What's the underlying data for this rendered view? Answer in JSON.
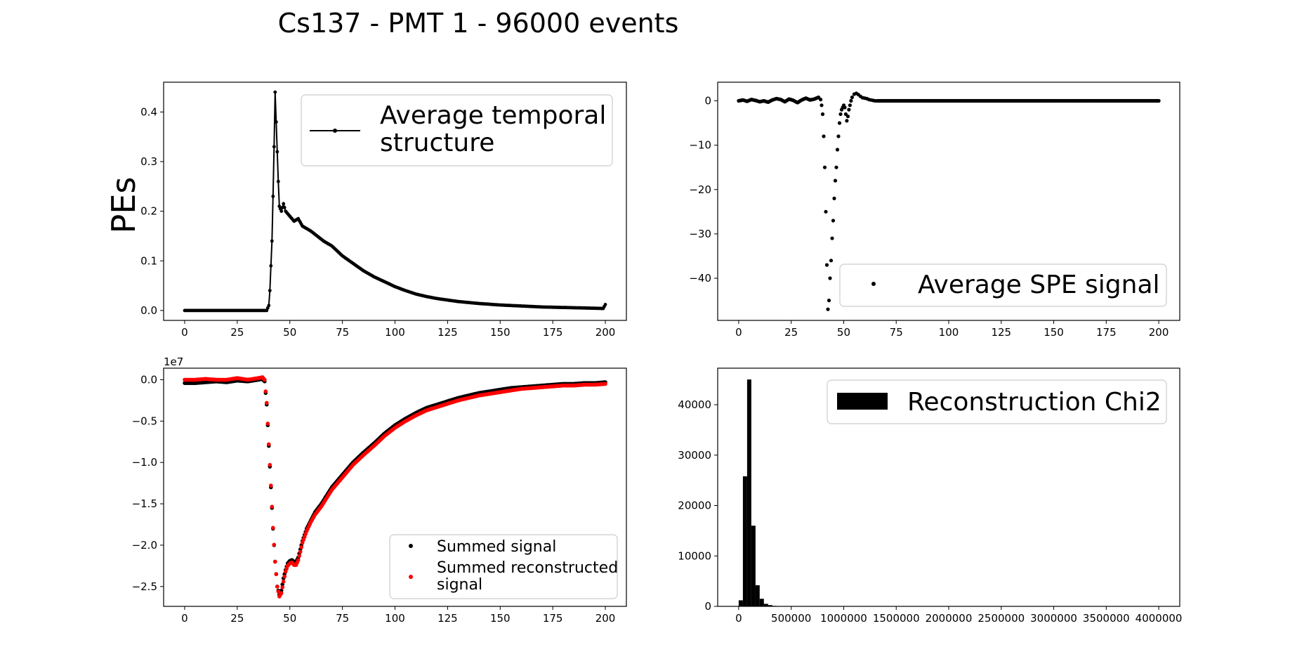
{
  "figure_title": "Cs137 - PMT 1 - 96000 events",
  "chart_data": [
    {
      "id": "temporal",
      "type": "line",
      "ylabel": "PEs",
      "xlim": [
        -10,
        210
      ],
      "ylim": [
        -0.02,
        0.46
      ],
      "xticks": [
        0,
        25,
        50,
        75,
        100,
        125,
        150,
        175,
        200
      ],
      "yticks": [
        0.0,
        0.1,
        0.2,
        0.3,
        0.4
      ],
      "ytick_labels": [
        "0.0",
        "0.1",
        "0.2",
        "0.3",
        "0.4"
      ],
      "legend": [
        "Average temporal",
        " structure"
      ],
      "legend_loc": "upper right",
      "series": [
        {
          "name": "Average temporal structure",
          "x": [
            0,
            10,
            20,
            30,
            39,
            40,
            40.5,
            41,
            41.5,
            42,
            42.5,
            43,
            43.5,
            44,
            44.5,
            45,
            46,
            47,
            48,
            50,
            52,
            54,
            56,
            58,
            60,
            63,
            66,
            70,
            75,
            80,
            85,
            90,
            95,
            100,
            105,
            110,
            115,
            120,
            125,
            130,
            140,
            150,
            160,
            170,
            180,
            190,
            199,
            200
          ],
          "y": [
            0,
            0,
            0,
            0,
            0,
            0.01,
            0.04,
            0.09,
            0.14,
            0.23,
            0.33,
            0.44,
            0.38,
            0.32,
            0.26,
            0.21,
            0.2,
            0.215,
            0.2,
            0.19,
            0.18,
            0.185,
            0.17,
            0.165,
            0.16,
            0.15,
            0.14,
            0.13,
            0.11,
            0.095,
            0.08,
            0.068,
            0.058,
            0.048,
            0.04,
            0.033,
            0.028,
            0.024,
            0.021,
            0.018,
            0.014,
            0.011,
            0.009,
            0.007,
            0.006,
            0.005,
            0.004,
            0.012
          ]
        }
      ]
    },
    {
      "id": "spe",
      "type": "scatter",
      "xlim": [
        -10,
        210
      ],
      "ylim": [
        -49.5,
        4.2
      ],
      "xticks": [
        0,
        25,
        50,
        75,
        100,
        125,
        150,
        175,
        200
      ],
      "yticks": [
        0,
        -10,
        -20,
        -30,
        -40
      ],
      "ytick_labels": [
        "0",
        "−10",
        "−20",
        "−30",
        "−40"
      ],
      "legend": [
        "Average SPE signal"
      ],
      "legend_loc": "lower right",
      "series": [
        {
          "name": "Average SPE signal",
          "x": [
            0,
            2,
            4,
            6,
            8,
            10,
            12,
            14,
            16,
            18,
            20,
            22,
            24,
            26,
            28,
            30,
            32,
            34,
            36,
            38,
            39,
            39.5,
            40,
            40.5,
            41,
            41.5,
            42,
            42.5,
            43,
            43.5,
            44,
            44.5,
            45,
            45.5,
            46,
            46.5,
            47,
            47.5,
            48,
            48.5,
            49,
            49.5,
            50,
            50.5,
            51,
            51.5,
            52,
            52.5,
            53,
            53.5,
            54,
            55,
            56,
            57,
            58,
            59,
            60,
            61,
            62,
            63,
            64,
            65,
            66,
            68,
            70,
            72,
            80,
            90,
            100,
            110,
            120,
            130,
            140,
            150,
            160,
            170,
            180,
            190,
            200
          ],
          "y": [
            0,
            0.2,
            -0.1,
            0.3,
            0.1,
            -0.2,
            0,
            -0.3,
            0.2,
            0.5,
            0.3,
            -0.2,
            0.4,
            0.1,
            -0.4,
            0.2,
            0.6,
            0.2,
            0.4,
            0.8,
            0.3,
            -1,
            -3,
            -8,
            -15,
            -25,
            -37,
            -47,
            -45,
            -40,
            -36,
            -31,
            -27,
            -22,
            -18,
            -15,
            -11,
            -8,
            -5,
            -3,
            -2,
            -1.5,
            -1,
            -1.5,
            -3,
            -4.5,
            -3.5,
            -2,
            -1,
            0,
            0.8,
            1.5,
            1.7,
            1.4,
            1,
            0.7,
            0.6,
            0.5,
            0.3,
            0.2,
            0.1,
            0,
            0,
            0,
            0,
            0,
            0,
            0,
            0,
            0,
            0,
            0,
            0,
            0,
            0,
            0,
            0,
            0,
            0
          ]
        }
      ]
    },
    {
      "id": "summed",
      "type": "scatter",
      "offset_label": "1e7",
      "xlim": [
        -10,
        210
      ],
      "ylim": [
        -2.74,
        0.14
      ],
      "xticks": [
        0,
        25,
        50,
        75,
        100,
        125,
        150,
        175,
        200
      ],
      "yticks": [
        0.0,
        -0.5,
        -1.0,
        -1.5,
        -2.0,
        -2.5
      ],
      "ytick_labels": [
        "0.0",
        "−0.5",
        "−1.0",
        "−1.5",
        "−2.0",
        "−2.5"
      ],
      "legend": [
        "Summed signal",
        "Summed reconstructed",
        " signal"
      ],
      "legend_loc": "lower right",
      "series": [
        {
          "name": "Summed signal",
          "color": "#000000",
          "x": [
            0,
            5,
            10,
            15,
            20,
            25,
            30,
            35,
            37,
            38,
            39,
            40,
            41,
            42,
            43,
            44,
            45,
            46,
            47,
            48,
            49,
            50,
            51,
            52,
            53,
            54,
            55,
            56,
            58,
            60,
            62,
            65,
            70,
            75,
            80,
            85,
            90,
            95,
            100,
            105,
            110,
            115,
            120,
            125,
            130,
            135,
            140,
            145,
            150,
            155,
            160,
            165,
            170,
            175,
            180,
            185,
            190,
            195,
            200
          ],
          "y": [
            -0.04,
            -0.04,
            -0.03,
            -0.02,
            -0.03,
            -0.01,
            -0.02,
            0.0,
            0.01,
            -0.02,
            -0.3,
            -0.8,
            -1.3,
            -1.8,
            -2.2,
            -2.5,
            -2.6,
            -2.55,
            -2.4,
            -2.3,
            -2.22,
            -2.19,
            -2.18,
            -2.2,
            -2.2,
            -2.15,
            -2.05,
            -1.95,
            -1.8,
            -1.7,
            -1.6,
            -1.5,
            -1.3,
            -1.15,
            -1.0,
            -0.88,
            -0.77,
            -0.65,
            -0.55,
            -0.47,
            -0.4,
            -0.34,
            -0.3,
            -0.26,
            -0.22,
            -0.19,
            -0.16,
            -0.14,
            -0.12,
            -0.1,
            -0.09,
            -0.08,
            -0.07,
            -0.06,
            -0.05,
            -0.05,
            -0.04,
            -0.04,
            -0.03
          ]
        },
        {
          "name": "Summed reconstructed signal",
          "color": "#ff0000",
          "x": [
            0,
            5,
            10,
            15,
            20,
            25,
            30,
            35,
            37,
            38,
            39,
            40,
            41,
            42,
            43,
            44,
            45,
            46,
            47,
            48,
            49,
            50,
            51,
            52,
            53,
            54,
            55,
            56,
            58,
            60,
            62,
            65,
            70,
            75,
            80,
            85,
            90,
            95,
            100,
            105,
            110,
            115,
            120,
            125,
            130,
            135,
            140,
            145,
            150,
            155,
            160,
            165,
            170,
            175,
            180,
            185,
            190,
            195,
            200
          ],
          "y": [
            0.0,
            0.0,
            0.01,
            0.0,
            0.0,
            0.02,
            0.0,
            0.02,
            0.03,
            0.0,
            -0.28,
            -0.78,
            -1.28,
            -1.79,
            -2.2,
            -2.5,
            -2.62,
            -2.58,
            -2.44,
            -2.32,
            -2.25,
            -2.22,
            -2.21,
            -2.24,
            -2.24,
            -2.18,
            -2.08,
            -1.97,
            -1.83,
            -1.72,
            -1.63,
            -1.53,
            -1.33,
            -1.18,
            -1.03,
            -0.91,
            -0.8,
            -0.68,
            -0.58,
            -0.5,
            -0.43,
            -0.37,
            -0.33,
            -0.29,
            -0.25,
            -0.22,
            -0.19,
            -0.17,
            -0.15,
            -0.13,
            -0.11,
            -0.1,
            -0.09,
            -0.08,
            -0.07,
            -0.07,
            -0.06,
            -0.06,
            -0.05
          ]
        }
      ]
    },
    {
      "id": "chi2",
      "type": "bar",
      "xlim": [
        -200000,
        4200000
      ],
      "ylim": [
        0,
        47250
      ],
      "xticks": [
        0,
        500000,
        1000000,
        1500000,
        2000000,
        2500000,
        3000000,
        3500000,
        4000000
      ],
      "xtick_labels": [
        "0",
        "500000",
        "1000000",
        "1500000",
        "2000000",
        "2500000",
        "3000000",
        "3500000",
        "4000000"
      ],
      "yticks": [
        0,
        10000,
        20000,
        30000,
        40000
      ],
      "ytick_labels": [
        "0",
        "10000",
        "20000",
        "30000",
        "40000"
      ],
      "legend": [
        "Reconstruction Chi2"
      ],
      "legend_loc": "upper right",
      "bin_width": 40000,
      "series": [
        {
          "name": "Reconstruction Chi2",
          "bin_starts": [
            0,
            40000,
            80000,
            120000,
            160000,
            200000,
            240000,
            280000,
            320000,
            360000
          ],
          "counts": [
            1200,
            25800,
            45000,
            16000,
            4200,
            1500,
            500,
            250,
            100,
            50
          ]
        }
      ]
    }
  ]
}
